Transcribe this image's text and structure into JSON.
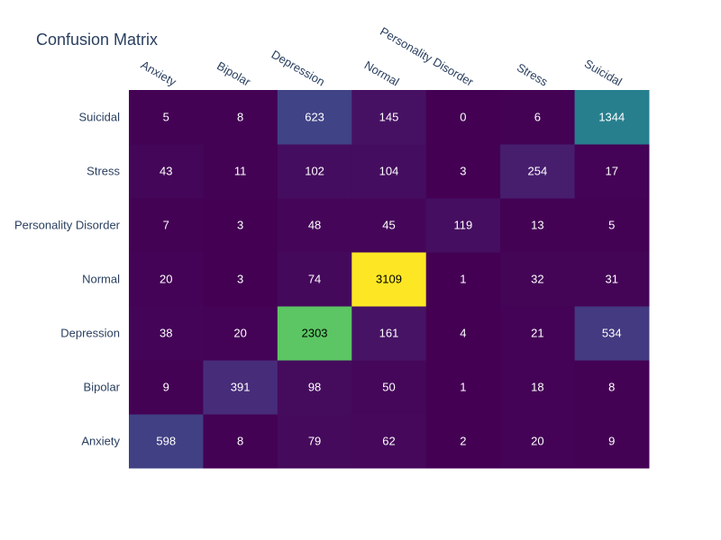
{
  "chart_data": {
    "type": "heatmap",
    "title": "Confusion Matrix",
    "x_categories": [
      "Anxiety",
      "Bipolar",
      "Depression",
      "Normal",
      "Personality Disorder",
      "Stress",
      "Suicidal"
    ],
    "y_categories": [
      "Anxiety",
      "Bipolar",
      "Depression",
      "Normal",
      "Personality Disorder",
      "Stress",
      "Suicidal"
    ],
    "values": [
      [
        598,
        8,
        79,
        62,
        2,
        20,
        9
      ],
      [
        9,
        391,
        98,
        50,
        1,
        18,
        8
      ],
      [
        38,
        20,
        2303,
        161,
        4,
        21,
        534
      ],
      [
        20,
        3,
        74,
        3109,
        1,
        32,
        31
      ],
      [
        7,
        3,
        48,
        45,
        119,
        13,
        5
      ],
      [
        43,
        11,
        102,
        104,
        3,
        254,
        17
      ],
      [
        5,
        8,
        623,
        145,
        0,
        6,
        1344
      ]
    ],
    "zrange": [
      0,
      3109
    ],
    "colorscale": "viridis",
    "x_axis_side": "top",
    "y_order": "bottom-to-top",
    "showscale": false
  }
}
